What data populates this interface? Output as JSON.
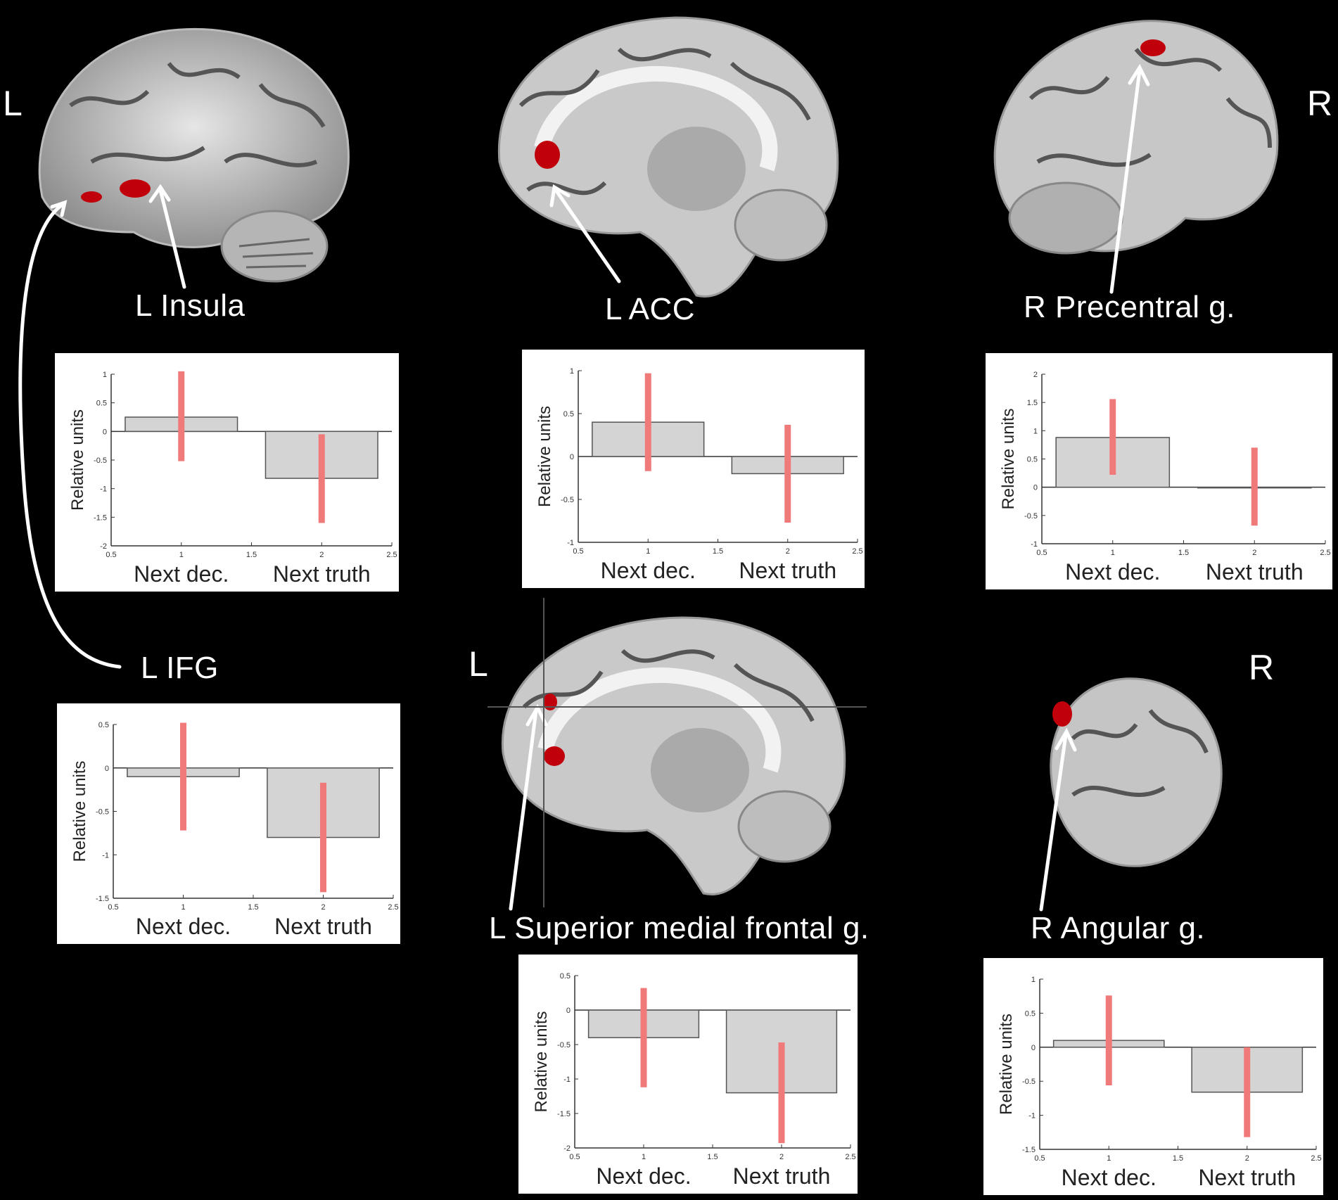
{
  "labels": {
    "side_left_top": "L",
    "side_right_top": "R",
    "side_left_bottom": "L",
    "side_right_bottom": "R",
    "insula": "L Insula",
    "acc": "L ACC",
    "precentral": "R Precentral g.",
    "ifg": "L IFG",
    "smfg": "L Superior medial frontal g.",
    "angular": "R Angular g."
  },
  "colors": {
    "bar_fill": "#d4d4d4",
    "bar_stroke": "#555555",
    "error_bar": "#f07a7a",
    "activation": "#c0000a"
  },
  "chart_data": [
    {
      "type": "bar",
      "id": "insula",
      "categories": [
        "Next dec.",
        "Next truth"
      ],
      "values": [
        0.25,
        -0.82
      ],
      "error_low": [
        -0.52,
        -1.6
      ],
      "error_high": [
        1.05,
        -0.05
      ],
      "ylabel": "Relative units",
      "ylim": [
        -2,
        1
      ],
      "yticks": [
        "1",
        "0.5",
        "0",
        "-0.5",
        "-1",
        "-1.5",
        "-2"
      ],
      "ytick_values": [
        1,
        0.5,
        0,
        -0.5,
        -1,
        -1.5,
        -2
      ],
      "xticks": [
        "0.5",
        "1",
        "1.5",
        "2",
        "2.5"
      ],
      "xlim": [
        0.5,
        2.5
      ]
    },
    {
      "type": "bar",
      "id": "acc",
      "categories": [
        "Next dec.",
        "Next truth"
      ],
      "values": [
        0.4,
        -0.2
      ],
      "error_low": [
        -0.17,
        -0.77
      ],
      "error_high": [
        0.97,
        0.37
      ],
      "ylabel": "Relative units",
      "ylim": [
        -1,
        1
      ],
      "yticks": [
        "1",
        "0.5",
        "0",
        "-0.5",
        "-1"
      ],
      "ytick_values": [
        1,
        0.5,
        0,
        -0.5,
        -1
      ],
      "xticks": [
        "0.5",
        "1",
        "1.5",
        "2",
        "2.5"
      ],
      "xlim": [
        0.5,
        2.5
      ]
    },
    {
      "type": "bar",
      "id": "precentral",
      "categories": [
        "Next dec.",
        "Next truth"
      ],
      "values": [
        0.88,
        0.0
      ],
      "error_low": [
        0.22,
        -0.68
      ],
      "error_high": [
        1.56,
        0.7
      ],
      "ylabel": "Relative units",
      "ylim": [
        -1,
        2
      ],
      "yticks": [
        "2",
        "1.5",
        "1",
        "0.5",
        "0",
        "-0.5",
        "-1"
      ],
      "ytick_values": [
        2,
        1.5,
        1,
        0.5,
        0,
        -0.5,
        -1
      ],
      "xticks": [
        "0.5",
        "1",
        "1.5",
        "2",
        "2.5"
      ],
      "xlim": [
        0.5,
        2.5
      ]
    },
    {
      "type": "bar",
      "id": "ifg",
      "categories": [
        "Next dec.",
        "Next truth"
      ],
      "values": [
        -0.1,
        -0.8
      ],
      "error_low": [
        -0.72,
        -1.43
      ],
      "error_high": [
        0.52,
        -0.17
      ],
      "ylabel": "Relative units",
      "ylim": [
        -1.5,
        0.5
      ],
      "yticks": [
        "0.5",
        "0",
        "-0.5",
        "-1",
        "-1.5"
      ],
      "ytick_values": [
        0.5,
        0,
        -0.5,
        -1,
        -1.5
      ],
      "xticks": [
        "0.5",
        "1",
        "1.5",
        "2",
        "2.5"
      ],
      "xlim": [
        0.5,
        2.5
      ]
    },
    {
      "type": "bar",
      "id": "smfg",
      "categories": [
        "Next dec.",
        "Next truth"
      ],
      "values": [
        -0.4,
        -1.2
      ],
      "error_low": [
        -1.12,
        -1.93
      ],
      "error_high": [
        0.32,
        -0.47
      ],
      "ylabel": "Relative units",
      "ylim": [
        -2,
        0.5
      ],
      "yticks": [
        "0.5",
        "0",
        "-0.5",
        "-1",
        "-1.5",
        "-2"
      ],
      "ytick_values": [
        0.5,
        0,
        -0.5,
        -1,
        -1.5,
        -2
      ],
      "xticks": [
        "0.5",
        "1",
        "1.5",
        "2",
        "2.5"
      ],
      "xlim": [
        0.5,
        2.5
      ]
    },
    {
      "type": "bar",
      "id": "angular",
      "categories": [
        "Next dec.",
        "Next truth"
      ],
      "values": [
        0.1,
        -0.66
      ],
      "error_low": [
        -0.56,
        -1.32
      ],
      "error_high": [
        0.76,
        0.0
      ],
      "ylabel": "Relative units",
      "ylim": [
        -1.5,
        1
      ],
      "yticks": [
        "1",
        "0.5",
        "0",
        "-0.5",
        "-1",
        "-1.5"
      ],
      "ytick_values": [
        1,
        0.5,
        0,
        -0.5,
        -1,
        -1.5
      ],
      "xticks": [
        "0.5",
        "1",
        "1.5",
        "2",
        "2.5"
      ],
      "xlim": [
        0.5,
        2.5
      ]
    }
  ]
}
